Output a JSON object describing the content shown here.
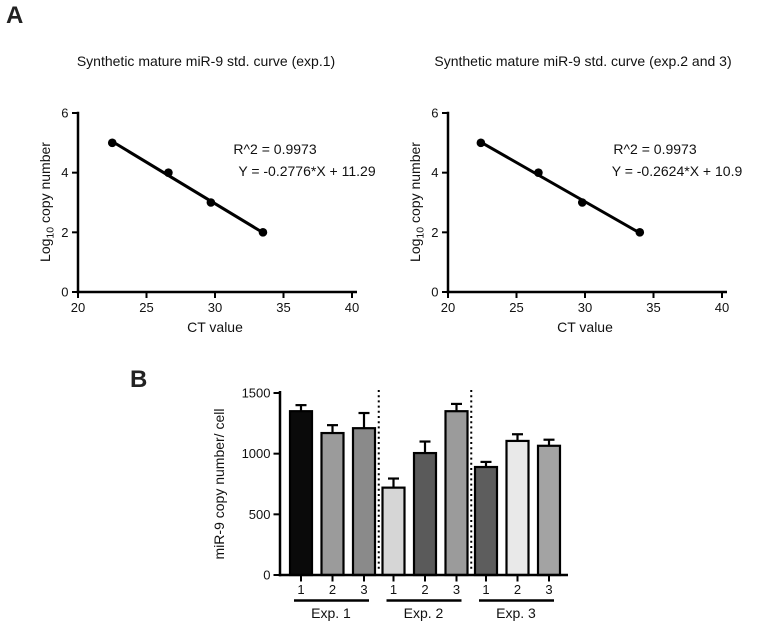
{
  "panel_a": {
    "label": "A"
  },
  "panel_b": {
    "label": "B"
  },
  "chart_data": [
    {
      "id": "std_curve_exp1",
      "type": "scatter",
      "title": "Synthetic mature miR-9 std. curve (exp.1)",
      "xlabel": "CT value",
      "ylabel": {
        "prefix": "Log",
        "sub": "10",
        "suffix": " copy number"
      },
      "xlim": [
        20,
        40
      ],
      "ylim": [
        0,
        6
      ],
      "xticks": [
        20,
        25,
        30,
        35,
        40
      ],
      "yticks": [
        0,
        2,
        4,
        6
      ],
      "points": [
        [
          22.5,
          5
        ],
        [
          26.6,
          4
        ],
        [
          29.7,
          3
        ],
        [
          33.5,
          2
        ]
      ],
      "fit": {
        "slope": -0.2776,
        "intercept": 11.29,
        "x_start": 22.5,
        "x_end": 33.5
      },
      "annotations": [
        "R^2 = 0.9973",
        "Y = -0.2776*X + 11.29"
      ],
      "grid": false,
      "legend": "none"
    },
    {
      "id": "std_curve_exp2_3",
      "type": "scatter",
      "title": "Synthetic mature miR-9 std. curve (exp.2 and 3)",
      "xlabel": "CT value",
      "ylabel": {
        "prefix": "Log",
        "sub": "10",
        "suffix": " copy number"
      },
      "xlim": [
        20,
        40
      ],
      "ylim": [
        0,
        6
      ],
      "xticks": [
        20,
        25,
        30,
        35,
        40
      ],
      "yticks": [
        0,
        2,
        4,
        6
      ],
      "points": [
        [
          22.4,
          5
        ],
        [
          26.6,
          4
        ],
        [
          29.8,
          3
        ],
        [
          34.0,
          2
        ]
      ],
      "fit": {
        "slope": -0.2624,
        "intercept": 10.9,
        "x_start": 22.4,
        "x_end": 34.0
      },
      "annotations": [
        "R^2 = 0.9973",
        "Y = -0.2624*X + 10.9"
      ],
      "grid": false,
      "legend": "none"
    },
    {
      "id": "mir9_copy_number_per_cell",
      "type": "bar",
      "title": "",
      "xlabel": "",
      "ylabel": "miR-9 copy number/ cell",
      "ylim": [
        0,
        1500
      ],
      "yticks": [
        0,
        500,
        1000,
        1500
      ],
      "grid": false,
      "legend": "none",
      "groups": [
        {
          "label": "Exp. 1",
          "bars": [
            {
              "tick": "1",
              "value": 1350,
              "err": 50,
              "color": "#0a0a0a"
            },
            {
              "tick": "2",
              "value": 1170,
              "err": 65,
              "color": "#9b9b9b"
            },
            {
              "tick": "3",
              "value": 1210,
              "err": 125,
              "color": "#8a8a8a"
            }
          ]
        },
        {
          "label": "Exp. 2",
          "bars": [
            {
              "tick": "1",
              "value": 720,
              "err": 75,
              "color": "#d6d6d6"
            },
            {
              "tick": "2",
              "value": 1005,
              "err": 95,
              "color": "#5a5a5a"
            },
            {
              "tick": "3",
              "value": 1350,
              "err": 60,
              "color": "#9b9b9b"
            }
          ]
        },
        {
          "label": "Exp. 3",
          "bars": [
            {
              "tick": "1",
              "value": 890,
              "err": 42,
              "color": "#5d5d5d"
            },
            {
              "tick": "2",
              "value": 1105,
              "err": 55,
              "color": "#e9e9e9"
            },
            {
              "tick": "3",
              "value": 1065,
              "err": 50,
              "color": "#a3a3a3"
            }
          ]
        }
      ]
    }
  ],
  "colors": {
    "ink": "#000000",
    "background": "#ffffff"
  }
}
